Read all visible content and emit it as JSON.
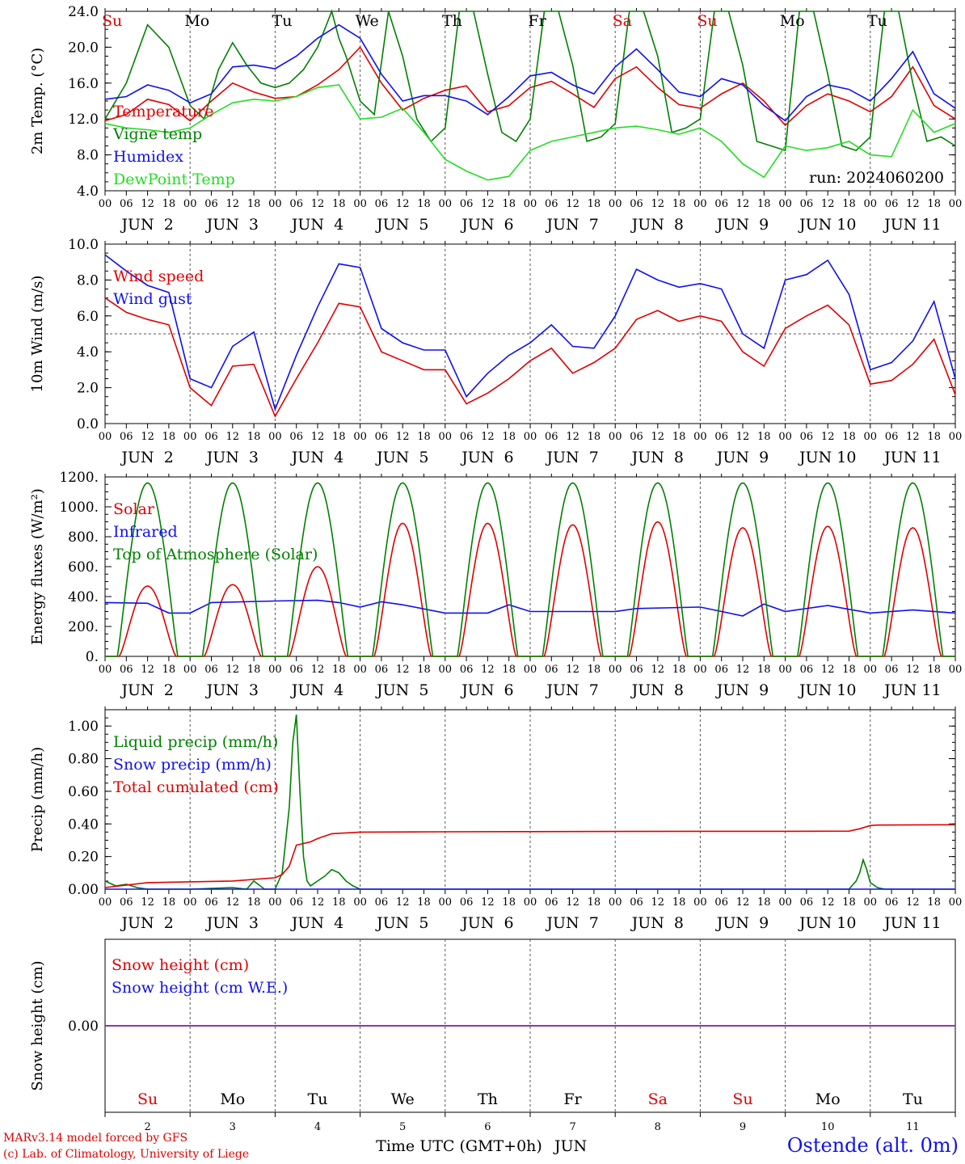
{
  "header": {
    "credit_line1": "MARv3.14 model forced by GFS",
    "credit_line2": "(c) Lab. of Climatology, University of Liege",
    "station": "Ostende (alt. 0m)",
    "time_label": "Time UTC (GMT+0h)",
    "month_label": "JUN",
    "run_label": "run: 2024060200"
  },
  "calendar": {
    "hour_ticks": [
      "00",
      "06",
      "12",
      "18"
    ],
    "day_labels": [
      "JUN  2",
      "JUN  3",
      "JUN  4",
      "JUN  5",
      "JUN  6",
      "JUN  7",
      "JUN  8",
      "JUN  9",
      "JUN 10",
      "JUN 11"
    ],
    "weekdays": [
      "Su",
      "Mo",
      "Tu",
      "We",
      "Th",
      "Fr",
      "Sa",
      "Su",
      "Mo",
      "Tu"
    ],
    "weekend_flags": [
      true,
      false,
      false,
      false,
      false,
      false,
      true,
      true,
      false,
      false
    ],
    "day_numbers": [
      "2",
      "3",
      "4",
      "5",
      "6",
      "7",
      "8",
      "9",
      "10",
      "11"
    ]
  },
  "colors": {
    "red": "#e00000",
    "green": "#008000",
    "blue": "#1010f0",
    "lightgreen": "#22dd22",
    "purple": "#7a1fa0",
    "dash": "#555555"
  },
  "chart_data": [
    {
      "type": "line",
      "ylabel": "2m Temp. (°C)",
      "ylim": [
        4,
        24
      ],
      "yticks": [
        "4.0",
        "8.0",
        "12.0",
        "16.0",
        "20.0",
        "24.0"
      ],
      "x_unit": "hours since JUN 2 00 UTC",
      "xlim": [
        0,
        240
      ],
      "series": [
        {
          "name": "Temperature",
          "color": "red",
          "x": [
            0,
            6,
            12,
            18,
            24,
            30,
            36,
            42,
            48,
            54,
            60,
            66,
            72,
            78,
            84,
            90,
            96,
            102,
            108,
            114,
            120,
            126,
            132,
            138,
            144,
            150,
            156,
            162,
            168,
            174,
            180,
            186,
            192,
            198,
            204,
            210,
            216,
            222,
            228,
            234,
            240
          ],
          "y": [
            11.8,
            12.5,
            14.2,
            13.6,
            11.8,
            14.0,
            16.0,
            15.0,
            14.3,
            14.5,
            15.8,
            17.5,
            20.0,
            16.0,
            13.0,
            14.3,
            15.2,
            15.7,
            12.8,
            13.5,
            15.5,
            16.2,
            14.8,
            13.3,
            16.5,
            17.8,
            15.5,
            13.6,
            13.2,
            14.8,
            16.0,
            14.0,
            11.3,
            13.5,
            14.8,
            14.0,
            12.8,
            14.5,
            17.8,
            13.5,
            12.0
          ]
        },
        {
          "name": "Vigne temp",
          "color": "green",
          "x": [
            0,
            6,
            12,
            18,
            24,
            28,
            32,
            36,
            40,
            44,
            48,
            52,
            56,
            60,
            64,
            66,
            68,
            72,
            76,
            80,
            84,
            88,
            92,
            96,
            100,
            104,
            108,
            112,
            116,
            120,
            124,
            128,
            132,
            136,
            140,
            144,
            148,
            152,
            156,
            160,
            164,
            168,
            172,
            176,
            180,
            184,
            188,
            192,
            196,
            200,
            204,
            208,
            212,
            216,
            220,
            224,
            228,
            232,
            236,
            240
          ],
          "y": [
            12.0,
            16.0,
            22.5,
            20.0,
            13.5,
            12.0,
            17.5,
            20.5,
            18.0,
            16.0,
            15.5,
            16.0,
            17.5,
            20.0,
            24.0,
            21.0,
            19.0,
            14.0,
            12.5,
            24.0,
            19.0,
            12.0,
            9.5,
            11.0,
            24.0,
            24.0,
            17.0,
            10.5,
            9.5,
            12.0,
            24.0,
            24.0,
            18.0,
            9.5,
            10.0,
            11.5,
            24.0,
            24.0,
            19.0,
            10.5,
            11.0,
            12.0,
            24.0,
            24.0,
            18.0,
            9.5,
            9.0,
            8.5,
            24.0,
            24.0,
            17.0,
            9.0,
            8.5,
            10.0,
            24.0,
            24.0,
            16.0,
            9.5,
            10.0,
            9.0
          ]
        },
        {
          "name": "Humidex",
          "color": "blue",
          "x": [
            0,
            6,
            12,
            18,
            24,
            30,
            36,
            42,
            48,
            54,
            60,
            66,
            72,
            78,
            84,
            90,
            96,
            102,
            108,
            114,
            120,
            126,
            132,
            138,
            144,
            150,
            156,
            162,
            168,
            174,
            180,
            186,
            192,
            198,
            204,
            210,
            216,
            222,
            228,
            234,
            240
          ],
          "y": [
            14.2,
            14.5,
            15.8,
            15.2,
            13.8,
            14.8,
            17.8,
            18.0,
            17.6,
            19.0,
            21.0,
            22.5,
            21.0,
            17.0,
            14.0,
            14.6,
            14.6,
            14.0,
            12.5,
            14.5,
            16.8,
            17.2,
            15.8,
            14.8,
            17.8,
            19.8,
            17.5,
            15.0,
            14.5,
            16.5,
            15.8,
            13.5,
            11.8,
            14.5,
            15.8,
            15.3,
            14.0,
            16.5,
            19.5,
            14.8,
            13.2
          ]
        },
        {
          "name": "DewPoint Temp",
          "color": "lightgreen",
          "x": [
            0,
            6,
            12,
            18,
            24,
            30,
            36,
            42,
            48,
            54,
            60,
            66,
            72,
            78,
            84,
            90,
            96,
            102,
            108,
            114,
            120,
            126,
            132,
            138,
            144,
            150,
            156,
            162,
            168,
            174,
            180,
            186,
            192,
            198,
            204,
            210,
            216,
            222,
            228,
            234,
            240
          ],
          "y": [
            11.5,
            11.0,
            10.8,
            10.5,
            11.0,
            12.5,
            13.8,
            14.2,
            14.0,
            14.5,
            15.5,
            15.8,
            12.0,
            12.2,
            13.2,
            10.5,
            7.5,
            6.2,
            5.2,
            5.6,
            8.5,
            9.5,
            10.0,
            10.5,
            11.0,
            11.2,
            10.8,
            10.3,
            11.0,
            9.5,
            7.0,
            5.5,
            9.0,
            8.5,
            8.8,
            9.5,
            8.0,
            7.8,
            13.0,
            10.5,
            11.5
          ]
        }
      ]
    },
    {
      "type": "line",
      "ylabel": "10m Wind (m/s)",
      "ylim": [
        0,
        10
      ],
      "yticks": [
        "0.0",
        "2.0",
        "4.0",
        "6.0",
        "8.0",
        "10.0"
      ],
      "reference_line": 5,
      "xlim": [
        0,
        240
      ],
      "series": [
        {
          "name": "Wind speed",
          "color": "red",
          "x": [
            0,
            6,
            12,
            18,
            24,
            30,
            36,
            42,
            48,
            54,
            60,
            66,
            72,
            78,
            84,
            90,
            96,
            102,
            108,
            114,
            120,
            126,
            132,
            138,
            144,
            150,
            156,
            162,
            168,
            174,
            180,
            186,
            192,
            198,
            204,
            210,
            216,
            222,
            228,
            234,
            240
          ],
          "y": [
            7.0,
            6.2,
            5.8,
            5.5,
            2.0,
            1.0,
            3.2,
            3.3,
            0.4,
            2.5,
            4.5,
            6.7,
            6.5,
            4.0,
            3.5,
            3.0,
            3.0,
            1.1,
            1.7,
            2.5,
            3.5,
            4.2,
            2.8,
            3.4,
            4.2,
            5.8,
            6.3,
            5.7,
            6.0,
            5.7,
            4.0,
            3.2,
            5.3,
            6.0,
            6.6,
            5.5,
            2.2,
            2.4,
            3.3,
            4.7,
            1.6
          ]
        },
        {
          "name": "Wind gust",
          "color": "blue",
          "x": [
            0,
            6,
            12,
            18,
            24,
            30,
            36,
            42,
            48,
            54,
            60,
            66,
            72,
            78,
            84,
            90,
            96,
            102,
            108,
            114,
            120,
            126,
            132,
            138,
            144,
            150,
            156,
            162,
            168,
            174,
            180,
            186,
            192,
            198,
            204,
            210,
            216,
            222,
            228,
            234,
            240
          ],
          "y": [
            9.4,
            8.5,
            7.7,
            7.3,
            2.5,
            2.0,
            4.3,
            5.1,
            0.8,
            3.8,
            6.5,
            8.9,
            8.7,
            5.3,
            4.5,
            4.1,
            4.1,
            1.5,
            2.8,
            3.8,
            4.5,
            5.5,
            4.3,
            4.2,
            6.0,
            8.6,
            8.0,
            7.6,
            7.8,
            7.5,
            5.0,
            4.2,
            8.0,
            8.3,
            9.1,
            7.2,
            3.0,
            3.4,
            4.6,
            6.8,
            2.5
          ]
        }
      ]
    },
    {
      "type": "line",
      "ylabel": "Energy fluxes (W/m²)",
      "ylim": [
        0,
        1200
      ],
      "yticks": [
        "0.",
        "200.",
        "400.",
        "600.",
        "800.",
        "1000.",
        "1200."
      ],
      "xlim": [
        0,
        240
      ],
      "toa_peak": 1160,
      "solar_peaks": [
        470,
        480,
        600,
        890,
        890,
        880,
        900,
        860,
        870,
        860
      ],
      "series": [
        {
          "name": "Solar",
          "color": "red"
        },
        {
          "name": "Infrared",
          "color": "blue",
          "x": [
            0,
            12,
            18,
            24,
            30,
            48,
            60,
            66,
            72,
            78,
            84,
            96,
            108,
            114,
            120,
            132,
            144,
            150,
            168,
            180,
            186,
            192,
            204,
            216,
            228,
            240
          ],
          "y": [
            360,
            355,
            290,
            290,
            360,
            370,
            375,
            360,
            330,
            365,
            345,
            290,
            290,
            345,
            300,
            300,
            300,
            320,
            330,
            270,
            350,
            300,
            340,
            290,
            310,
            290
          ]
        },
        {
          "name": "Top of Atmosphere (Solar)",
          "color": "green"
        }
      ]
    },
    {
      "type": "line",
      "ylabel": "Precip (mm/h)",
      "ylim": [
        0,
        1.1
      ],
      "yticks": [
        "0.00",
        "0.20",
        "0.40",
        "0.60",
        "0.80",
        "1.00"
      ],
      "xlim": [
        0,
        240
      ],
      "series": [
        {
          "name": "Liquid precip (mm/h)",
          "color": "green",
          "x": [
            0,
            3,
            6,
            9,
            12,
            24,
            36,
            40,
            42,
            45,
            48,
            50,
            51,
            52,
            53,
            54,
            55,
            56,
            57,
            58,
            60,
            62,
            64,
            66,
            68,
            70,
            72,
            80,
            96,
            120,
            144,
            168,
            192,
            210,
            212,
            213,
            214,
            215,
            216,
            218,
            220,
            240
          ],
          "y": [
            0.05,
            0.02,
            0.03,
            0.01,
            0.0,
            0.0,
            0.01,
            0.0,
            0.05,
            0.0,
            0.0,
            0.1,
            0.3,
            0.5,
            0.9,
            1.07,
            0.6,
            0.2,
            0.05,
            0.02,
            0.05,
            0.08,
            0.12,
            0.1,
            0.05,
            0.02,
            0.0,
            0.0,
            0.0,
            0.0,
            0.0,
            0.0,
            0.0,
            0.0,
            0.05,
            0.1,
            0.18,
            0.12,
            0.04,
            0.01,
            0.0,
            0.0
          ]
        },
        {
          "name": "Snow precip (mm/h)",
          "color": "blue",
          "x": [
            0,
            240
          ],
          "y": [
            0.0,
            0.0
          ]
        },
        {
          "name": "Total cumulated (cm)",
          "color": "red",
          "x": [
            0,
            12,
            24,
            36,
            48,
            50,
            52,
            54,
            56,
            58,
            60,
            64,
            72,
            96,
            120,
            144,
            168,
            192,
            210,
            213,
            216,
            218,
            240
          ],
          "y": [
            0.01,
            0.04,
            0.045,
            0.05,
            0.07,
            0.09,
            0.14,
            0.27,
            0.28,
            0.29,
            0.31,
            0.34,
            0.35,
            0.352,
            0.353,
            0.354,
            0.355,
            0.355,
            0.356,
            0.37,
            0.39,
            0.393,
            0.395
          ]
        }
      ]
    },
    {
      "type": "line",
      "ylabel": "Snow height (cm)",
      "ylim": [
        -1,
        1
      ],
      "yticks": [
        "0.00"
      ],
      "xlim": [
        0,
        240
      ],
      "series": [
        {
          "name": "Snow height (cm)",
          "color": "red",
          "x": [
            0,
            240
          ],
          "y": [
            0,
            0
          ]
        },
        {
          "name": "Snow height (cm W.E.)",
          "color": "blue",
          "x": [
            0,
            240
          ],
          "y": [
            0,
            0
          ]
        }
      ]
    }
  ]
}
